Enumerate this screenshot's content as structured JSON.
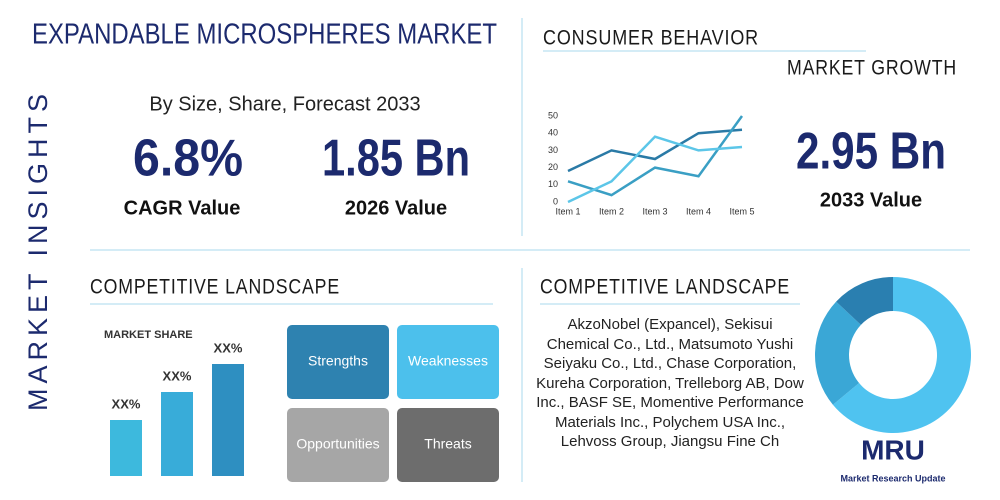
{
  "title": "EXPANDABLE MICROSPHERES MARKET",
  "side_label": "MARKET INSIGHTS",
  "subtitle": "By Size, Share, Forecast 2033",
  "stats": [
    {
      "value": "6.8%",
      "label": "CAGR Value"
    },
    {
      "value": "1.85 Bn",
      "label": "2026 Value"
    },
    {
      "value": "2.95 Bn",
      "label": "2033 Value"
    }
  ],
  "sections": {
    "consumer_behavior": "CONSUMER BEHAVIOR",
    "market_growth": "MARKET GROWTH",
    "competitive_left": "COMPETITIVE LANDSCAPE",
    "competitive_right": "COMPETITIVE LANDSCAPE"
  },
  "swot": [
    "Strengths",
    "Weaknesses",
    "Opportunities",
    "Threats"
  ],
  "companies": "AkzoNobel (Expancel), Sekisui Chemical Co., Ltd., Matsumoto Yushi Seiyaku Co., Ltd., Chase Corporation, Kureha Corporation, Trelleborg AB, Dow Inc., BASF SE, Momentive Performance Materials Inc., Polychem USA Inc., Lehvoss Group, Jiangsu Fine Ch",
  "logo": {
    "mark": "MRU",
    "name": "Market Research Update"
  },
  "chart_data": [
    {
      "type": "line",
      "categories": [
        "Item 1",
        "Item 2",
        "Item 3",
        "Item 4",
        "Item 5"
      ],
      "series": [
        {
          "color": "#2a7aa6",
          "values": [
            18,
            30,
            25,
            40,
            42
          ]
        },
        {
          "color": "#3a9fc4",
          "values": [
            12,
            4,
            20,
            15,
            50
          ]
        },
        {
          "color": "#5cc6e8",
          "values": [
            0,
            12,
            38,
            30,
            32
          ]
        }
      ],
      "ylim": [
        0,
        50
      ],
      "yticks": [
        0,
        10,
        20,
        30,
        40,
        50
      ]
    },
    {
      "type": "bar",
      "title": "MARKET SHARE",
      "values": [
        20,
        30,
        40
      ],
      "value_labels": [
        "XX%",
        "XX%",
        "XX%"
      ],
      "colors": [
        "#3db9dd",
        "#38acd9",
        "#2e8fc1"
      ]
    },
    {
      "type": "pie",
      "values": [
        64,
        23,
        13
      ],
      "colors": [
        "#4fc3f0",
        "#3aa7d6",
        "#2a7fb0"
      ]
    }
  ]
}
